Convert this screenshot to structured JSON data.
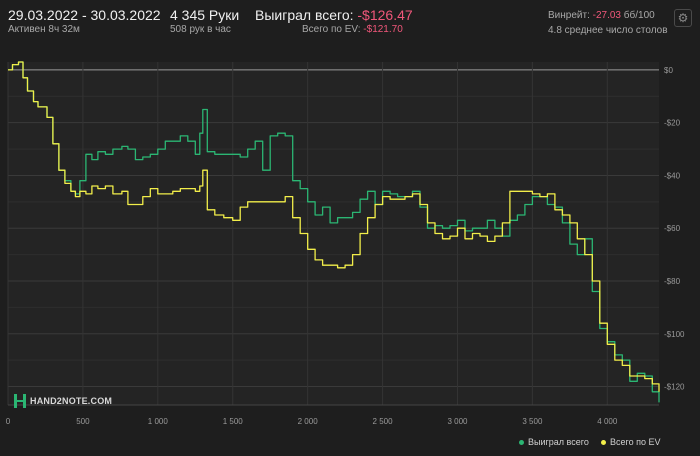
{
  "header": {
    "date_range": "29.03.2022 - 30.03.2022",
    "active_time": "Активен 8ч 32м",
    "hands": "4 345 Руки",
    "hands_per_hour": "508 рук в час",
    "won_label": "Выиграл всего:",
    "won_value": "-$126.47",
    "ev_label": "Всего по EV:",
    "ev_value": "-$121.70",
    "winrate_label": "Винрейт:",
    "winrate_value": "-27.03",
    "winrate_unit": "бб/100",
    "avg_tables": "4.8 среднее число столов",
    "settings_icon": "gear-icon"
  },
  "logo": {
    "text": "HAND2NOTE.COM"
  },
  "legend": {
    "won_label": "Выиграл всего",
    "ev_label": "Всего по EV"
  },
  "colors": {
    "background": "#1e1e1e",
    "won_series": "#2bb673",
    "ev_series": "#f2ee4a",
    "negative": "#f0577a",
    "zero_line": "#9a9a9a"
  },
  "chart_data": {
    "type": "line",
    "xlim": [
      0,
      4345
    ],
    "ylim": [
      -127,
      3
    ],
    "x_ticks": [
      0,
      500,
      1000,
      1500,
      2000,
      2500,
      3000,
      3500,
      4000
    ],
    "x_tick_labels": [
      "0",
      "500",
      "1 000",
      "1 500",
      "2 000",
      "2 500",
      "3 000",
      "3 500",
      "4 000"
    ],
    "y_ticks": [
      0,
      -20,
      -40,
      -60,
      -80,
      -100,
      -120
    ],
    "y_tick_labels": [
      "$0",
      "-$20",
      "-$40",
      "-$60",
      "-$80",
      "-$100",
      "-$120"
    ],
    "grid": true,
    "legend_position": "bottom-right",
    "series": [
      {
        "name": "Выиграл всего",
        "x": [
          0,
          30,
          70,
          100,
          130,
          170,
          200,
          260,
          300,
          340,
          380,
          420,
          450,
          480,
          520,
          560,
          600,
          650,
          700,
          760,
          800,
          850,
          900,
          950,
          1000,
          1050,
          1100,
          1150,
          1200,
          1250,
          1280,
          1300,
          1330,
          1380,
          1440,
          1500,
          1550,
          1600,
          1650,
          1700,
          1750,
          1800,
          1850,
          1900,
          1950,
          2000,
          2050,
          2100,
          2150,
          2200,
          2250,
          2300,
          2350,
          2400,
          2450,
          2500,
          2550,
          2600,
          2650,
          2700,
          2750,
          2800,
          2850,
          2900,
          2950,
          3000,
          3050,
          3100,
          3150,
          3200,
          3250,
          3300,
          3350,
          3400,
          3450,
          3500,
          3550,
          3600,
          3650,
          3700,
          3750,
          3800,
          3850,
          3900,
          3950,
          4000,
          4050,
          4100,
          4150,
          4200,
          4250,
          4300,
          4345
        ],
        "y": [
          0,
          2,
          3,
          -3,
          -8,
          -12,
          -14,
          -18,
          -28,
          -38,
          -42,
          -46,
          -47,
          -42,
          -32,
          -34,
          -31,
          -32,
          -30,
          -29,
          -30,
          -34,
          -33,
          -32,
          -30,
          -27,
          -27,
          -25,
          -27,
          -32,
          -24,
          -15,
          -31,
          -32,
          -32,
          -32,
          -33,
          -30,
          -27,
          -38,
          -25,
          -24,
          -25,
          -42,
          -45,
          -50,
          -55,
          -52,
          -58,
          -56,
          -56,
          -54,
          -49,
          -46,
          -51,
          -46,
          -47,
          -48,
          -48,
          -46,
          -52,
          -60,
          -59,
          -60,
          -59,
          -57,
          -61,
          -60,
          -60,
          -57,
          -60,
          -63,
          -57,
          -55,
          -51,
          -48,
          -48,
          -51,
          -52,
          -58,
          -66,
          -70,
          -64,
          -84,
          -98,
          -103,
          -108,
          -110,
          -118,
          -115,
          -116,
          -122,
          -126
        ]
      },
      {
        "name": "Всего по EV",
        "x": [
          0,
          30,
          70,
          100,
          130,
          170,
          200,
          260,
          300,
          340,
          380,
          420,
          450,
          480,
          520,
          560,
          600,
          650,
          700,
          760,
          800,
          850,
          900,
          950,
          1000,
          1050,
          1100,
          1150,
          1200,
          1250,
          1280,
          1300,
          1330,
          1380,
          1440,
          1500,
          1550,
          1600,
          1650,
          1700,
          1750,
          1800,
          1850,
          1900,
          1950,
          2000,
          2050,
          2100,
          2150,
          2200,
          2250,
          2300,
          2350,
          2400,
          2450,
          2500,
          2550,
          2600,
          2650,
          2700,
          2750,
          2800,
          2850,
          2900,
          2950,
          3000,
          3050,
          3100,
          3150,
          3200,
          3250,
          3300,
          3350,
          3400,
          3450,
          3500,
          3550,
          3600,
          3650,
          3700,
          3750,
          3800,
          3850,
          3900,
          3950,
          4000,
          4050,
          4100,
          4150,
          4200,
          4250,
          4300,
          4345
        ],
        "y": [
          0,
          2,
          3,
          -3,
          -8,
          -12,
          -14,
          -18,
          -28,
          -38,
          -43,
          -46,
          -48,
          -46,
          -47,
          -44,
          -45,
          -44,
          -47,
          -46,
          -51,
          -51,
          -48,
          -45,
          -47,
          -47,
          -46,
          -45,
          -45,
          -46,
          -44,
          -38,
          -53,
          -55,
          -56,
          -57,
          -52,
          -50,
          -50,
          -50,
          -50,
          -50,
          -48,
          -56,
          -62,
          -68,
          -72,
          -74,
          -74,
          -75,
          -74,
          -70,
          -62,
          -56,
          -51,
          -48,
          -49,
          -49,
          -48,
          -47,
          -51,
          -58,
          -62,
          -64,
          -63,
          -60,
          -64,
          -62,
          -63,
          -65,
          -63,
          -58,
          -46,
          -46,
          -46,
          -47,
          -48,
          -47,
          -53,
          -55,
          -58,
          -64,
          -70,
          -80,
          -96,
          -104,
          -110,
          -112,
          -116,
          -116,
          -117,
          -119,
          -122
        ]
      }
    ]
  }
}
